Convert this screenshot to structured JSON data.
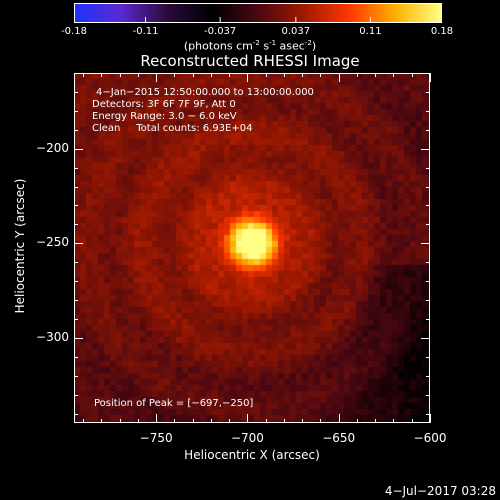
{
  "colors": {
    "background": "#000000",
    "foreground": "#ffffff"
  },
  "colorbar": {
    "ticks": [
      "-0.18",
      "-0.11",
      "-0.037",
      "0.037",
      "0.11",
      "0.18"
    ],
    "range": [
      -0.18,
      0.18
    ],
    "colormap": [
      "#1e32ff",
      "#5a2ad1",
      "#2b0b3d",
      "#000000",
      "#4a0812",
      "#9f1a00",
      "#ff3800",
      "#ffb000",
      "#ffff85"
    ],
    "units_prefix": "(photons cm",
    "units_exp1": "-2",
    "units_mid": " s",
    "units_exp2": "-1",
    "units_mid2": " asec",
    "units_exp3": "-2",
    "units_suffix": ")"
  },
  "chart_data": {
    "type": "heatmap",
    "title": "Reconstructed RHESSI Image",
    "xlabel": "Heliocentric X (arcsec)",
    "ylabel": "Heliocentric Y (arcsec)",
    "xlim": [
      -795,
      -600
    ],
    "ylim": [
      -345,
      -160
    ],
    "x_ticks": [
      -750,
      -700,
      -650,
      -600
    ],
    "x_tick_labels": [
      "−750",
      "−700",
      "−650",
      "−600"
    ],
    "y_ticks": [
      -200,
      -250,
      -300
    ],
    "y_tick_labels": [
      "−200",
      "−250",
      "−300"
    ],
    "peak": {
      "x": -697,
      "y": -250
    },
    "annotations": [
      "4−Jan−2015 12:50:00.000 to 13:00:00.000",
      "Detectors: 3F 6F 7F 9F, Att 0",
      "Energy Range: 3.0 − 6.0 keV",
      "Clean     Total counts: 6.93E+04"
    ],
    "peak_label": "Position of Peak = [−697,−250]"
  },
  "footer": {
    "timestamp": "4−Jul−2017 03:28"
  }
}
